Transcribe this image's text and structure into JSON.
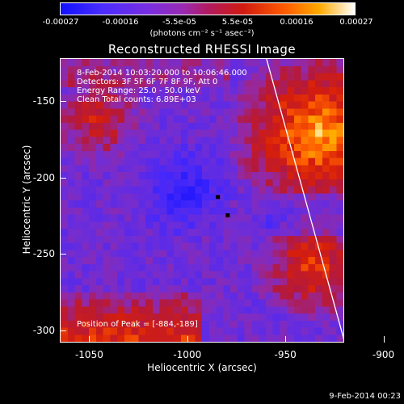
{
  "chart_data": {
    "type": "heatmap",
    "title": "Reconstructed RHESSI Image",
    "xlabel": "Heliocentric X (arcsec)",
    "ylabel": "Heliocentric Y (arcsec)",
    "xlim": [
      -1065,
      -920
    ],
    "ylim": [
      -308,
      -122
    ],
    "x_ticks": [
      "-1050",
      "-1000",
      "-950",
      "-900"
    ],
    "x_tick_values": [
      -1050,
      -1000,
      -950,
      -900
    ],
    "y_ticks": [
      "-150",
      "-200",
      "-250",
      "-300"
    ],
    "y_tick_values": [
      -150,
      -200,
      -250,
      -300
    ],
    "colorbar": {
      "ticks": [
        "-0.00027",
        "-0.00016",
        "-5.5e-05",
        "5.5e-05",
        "0.00016",
        "0.00027"
      ],
      "tick_values": [
        -0.00027,
        -0.00016,
        -5.5e-05,
        5.5e-05,
        0.00016,
        0.00027
      ],
      "units": "(photons cm⁻² s⁻¹ asec⁻²)",
      "range": [
        -0.00027,
        0.00027
      ]
    },
    "annotations": [
      "8-Feb-2014 10:03:20.000 to 10:06:46.000",
      "Detectors: 3F 5F 6F 7F 8F 9F, Att 0",
      "Energy Range: 25.0 - 50.0 keV",
      "Clean     Total counts: 6.89E+03"
    ],
    "peak_label": "Position of Peak = [-884,-189]",
    "peak": {
      "x": -884,
      "y": -189
    },
    "limb_line": {
      "x1": -960,
      "y1": -122,
      "x2": -920,
      "y2": -308
    }
  },
  "footer": {
    "timestamp": "9-Feb-2014 00:23"
  }
}
